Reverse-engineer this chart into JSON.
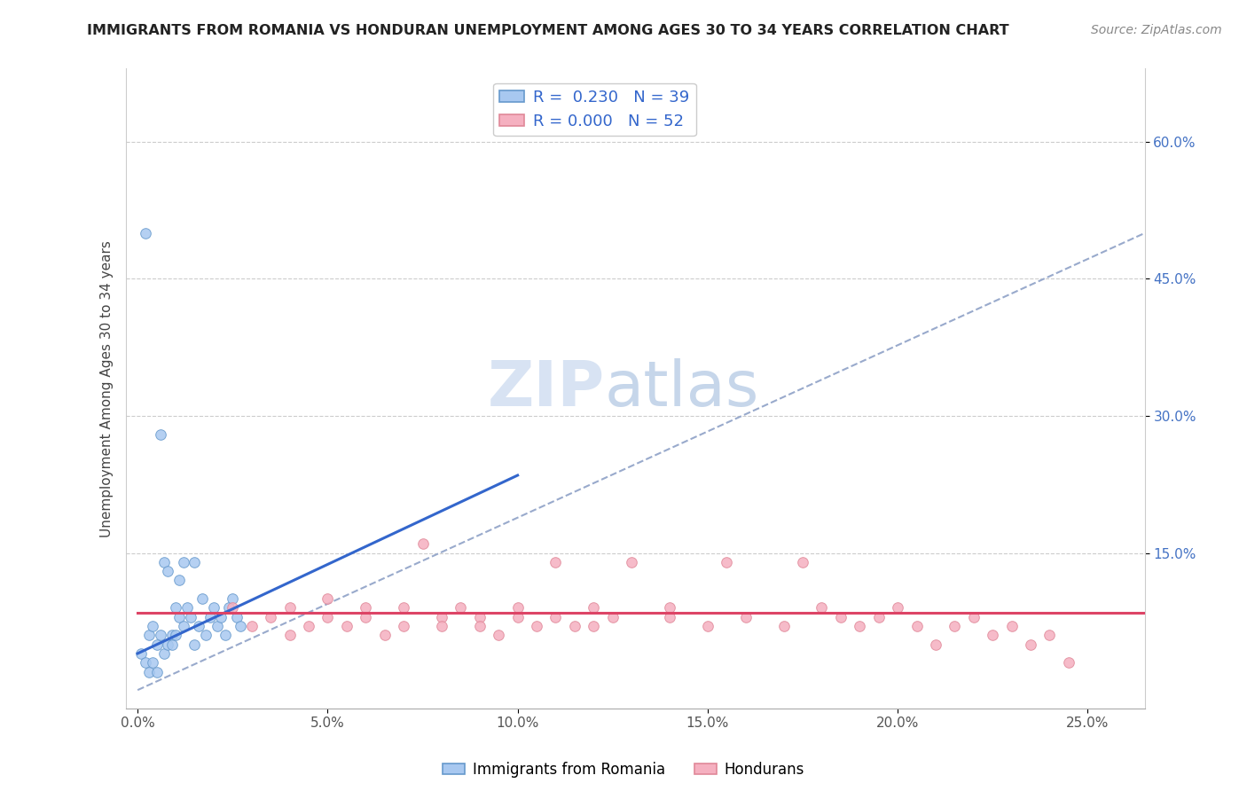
{
  "title": "IMMIGRANTS FROM ROMANIA VS HONDURAN UNEMPLOYMENT AMONG AGES 30 TO 34 YEARS CORRELATION CHART",
  "source": "Source: ZipAtlas.com",
  "ylabel": "Unemployment Among Ages 30 to 34 years",
  "x_tick_values": [
    0.0,
    0.05,
    0.1,
    0.15,
    0.2,
    0.25
  ],
  "x_tick_labels": [
    "0.0%",
    "5.0%",
    "10.0%",
    "15.0%",
    "20.0%",
    "25.0%"
  ],
  "y_tick_values": [
    0.15,
    0.3,
    0.45,
    0.6
  ],
  "y_tick_labels": [
    "15.0%",
    "30.0%",
    "45.0%",
    "60.0%"
  ],
  "xlim": [
    -0.003,
    0.265
  ],
  "ylim": [
    -0.02,
    0.68
  ],
  "legend_entry1": "R =  0.230   N = 39",
  "legend_entry2": "R = 0.000   N = 52",
  "legend_label1": "Immigrants from Romania",
  "legend_label2": "Hondurans",
  "color_romania_fill": "#a8c8f0",
  "color_romania_edge": "#6699cc",
  "color_honduras_fill": "#f5b0c0",
  "color_honduras_edge": "#e08898",
  "color_romania_line": "#3366cc",
  "color_honduras_line": "#dd4466",
  "color_dashed": "#99aacc",
  "watermark_zip": "ZIP",
  "watermark_atlas": "atlas",
  "romania_line_x1": 0.0,
  "romania_line_y1": 0.04,
  "romania_line_x2": 0.1,
  "romania_line_y2": 0.235,
  "honduras_line_x1": 0.0,
  "honduras_line_y1": 0.085,
  "honduras_line_x2": 0.265,
  "honduras_line_y2": 0.085,
  "dashed_line_x1": 0.0,
  "dashed_line_y1": 0.0,
  "dashed_line_x2": 0.265,
  "dashed_line_y2": 0.5,
  "romania_scatter_x": [
    0.001,
    0.002,
    0.002,
    0.003,
    0.003,
    0.004,
    0.004,
    0.005,
    0.005,
    0.006,
    0.006,
    0.007,
    0.007,
    0.008,
    0.008,
    0.009,
    0.009,
    0.01,
    0.01,
    0.011,
    0.011,
    0.012,
    0.012,
    0.013,
    0.014,
    0.015,
    0.015,
    0.016,
    0.017,
    0.018,
    0.019,
    0.02,
    0.021,
    0.022,
    0.023,
    0.024,
    0.025,
    0.026,
    0.027
  ],
  "romania_scatter_y": [
    0.04,
    0.03,
    0.5,
    0.06,
    0.02,
    0.07,
    0.03,
    0.05,
    0.02,
    0.06,
    0.28,
    0.04,
    0.14,
    0.05,
    0.13,
    0.06,
    0.05,
    0.09,
    0.06,
    0.12,
    0.08,
    0.07,
    0.14,
    0.09,
    0.08,
    0.05,
    0.14,
    0.07,
    0.1,
    0.06,
    0.08,
    0.09,
    0.07,
    0.08,
    0.06,
    0.09,
    0.1,
    0.08,
    0.07
  ],
  "honduras_scatter_x": [
    0.025,
    0.03,
    0.035,
    0.04,
    0.04,
    0.045,
    0.05,
    0.05,
    0.055,
    0.06,
    0.06,
    0.065,
    0.07,
    0.07,
    0.075,
    0.08,
    0.08,
    0.085,
    0.09,
    0.09,
    0.095,
    0.1,
    0.1,
    0.105,
    0.11,
    0.11,
    0.115,
    0.12,
    0.12,
    0.125,
    0.13,
    0.14,
    0.14,
    0.15,
    0.155,
    0.16,
    0.17,
    0.175,
    0.18,
    0.185,
    0.19,
    0.195,
    0.2,
    0.205,
    0.21,
    0.215,
    0.22,
    0.225,
    0.23,
    0.235,
    0.24,
    0.245
  ],
  "honduras_scatter_y": [
    0.09,
    0.07,
    0.08,
    0.06,
    0.09,
    0.07,
    0.08,
    0.1,
    0.07,
    0.09,
    0.08,
    0.06,
    0.07,
    0.09,
    0.16,
    0.08,
    0.07,
    0.09,
    0.08,
    0.07,
    0.06,
    0.08,
    0.09,
    0.07,
    0.14,
    0.08,
    0.07,
    0.09,
    0.07,
    0.08,
    0.14,
    0.09,
    0.08,
    0.07,
    0.14,
    0.08,
    0.07,
    0.14,
    0.09,
    0.08,
    0.07,
    0.08,
    0.09,
    0.07,
    0.05,
    0.07,
    0.08,
    0.06,
    0.07,
    0.05,
    0.06,
    0.03
  ]
}
